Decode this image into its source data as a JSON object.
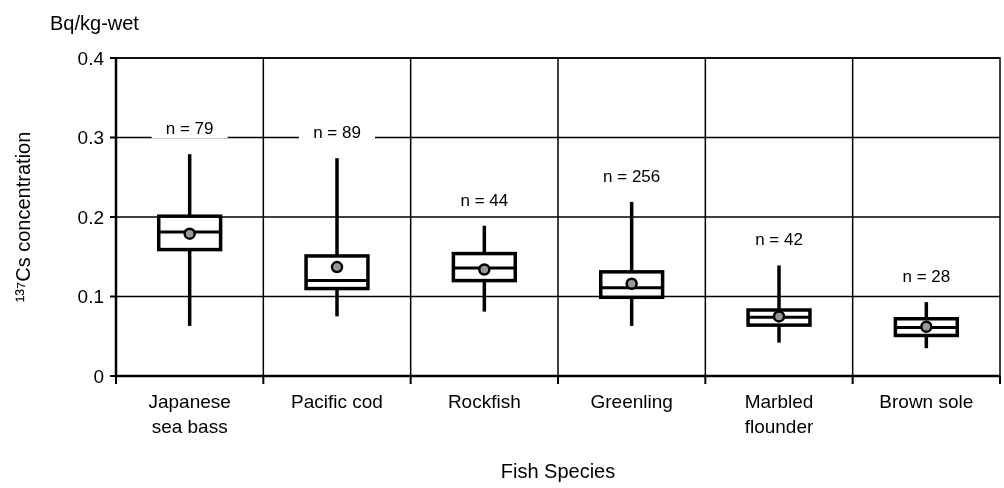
{
  "chart_data": {
    "type": "box",
    "xlabel": "Fish Species",
    "ylabel": "¹³⁷Cs concentration",
    "categories": [
      "Japanese sea bass",
      "Pacific cod",
      "Rockfish",
      "Greenling",
      "Marbled flounder",
      "Brown sole"
    ],
    "boxes": [
      {
        "low": 0.063,
        "q1": 0.159,
        "median": 0.181,
        "q3": 0.201,
        "high": 0.279,
        "mean": 0.179
      },
      {
        "low": 0.075,
        "q1": 0.11,
        "median": 0.12,
        "q3": 0.151,
        "high": 0.274,
        "mean": 0.137
      },
      {
        "low": 0.081,
        "q1": 0.12,
        "median": 0.136,
        "q3": 0.154,
        "high": 0.189,
        "mean": 0.134
      },
      {
        "low": 0.063,
        "q1": 0.099,
        "median": 0.111,
        "q3": 0.131,
        "high": 0.219,
        "mean": 0.116
      },
      {
        "low": 0.042,
        "q1": 0.064,
        "median": 0.074,
        "q3": 0.083,
        "high": 0.139,
        "mean": 0.075
      },
      {
        "low": 0.035,
        "q1": 0.051,
        "median": 0.061,
        "q3": 0.072,
        "high": 0.093,
        "mean": 0.062
      }
    ],
    "ylim": [
      0,
      0.4
    ],
    "yticks": [
      0,
      0.1,
      0.2,
      0.3,
      0.4
    ],
    "grid": true,
    "marker": "circle",
    "annotations": [
      "Bq/kg-wet",
      "n = 79",
      "n = 89",
      "n = 44",
      "n = 256",
      "n = 42",
      "n = 28"
    ]
  }
}
